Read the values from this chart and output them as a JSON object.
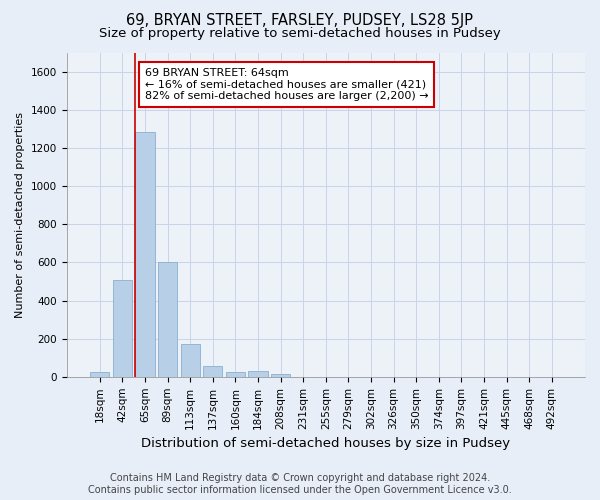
{
  "title": "69, BRYAN STREET, FARSLEY, PUDSEY, LS28 5JP",
  "subtitle": "Size of property relative to semi-detached houses in Pudsey",
  "xlabel": "Distribution of semi-detached houses by size in Pudsey",
  "ylabel": "Number of semi-detached properties",
  "footer_line1": "Contains HM Land Registry data © Crown copyright and database right 2024.",
  "footer_line2": "Contains public sector information licensed under the Open Government Licence v3.0.",
  "categories": [
    "18sqm",
    "42sqm",
    "65sqm",
    "89sqm",
    "113sqm",
    "137sqm",
    "160sqm",
    "184sqm",
    "208sqm",
    "231sqm",
    "255sqm",
    "279sqm",
    "302sqm",
    "326sqm",
    "350sqm",
    "374sqm",
    "397sqm",
    "421sqm",
    "445sqm",
    "468sqm",
    "492sqm"
  ],
  "values": [
    25,
    510,
    1285,
    600,
    170,
    58,
    25,
    30,
    15,
    0,
    0,
    0,
    0,
    0,
    0,
    0,
    0,
    0,
    0,
    0,
    0
  ],
  "bar_color": "#b8cfe8",
  "bar_edge_color": "#8ab0d0",
  "vline_x": 1.55,
  "vline_color": "#cc0000",
  "annotation_text": "69 BRYAN STREET: 64sqm\n← 16% of semi-detached houses are smaller (421)\n82% of semi-detached houses are larger (2,200) →",
  "ylim": [
    0,
    1700
  ],
  "yticks": [
    0,
    200,
    400,
    600,
    800,
    1000,
    1200,
    1400,
    1600
  ],
  "background_color": "#e8eef8",
  "plot_background": "#edf2f9",
  "grid_color": "#c8d4e8",
  "title_fontsize": 10.5,
  "subtitle_fontsize": 9.5,
  "xlabel_fontsize": 9.5,
  "ylabel_fontsize": 8,
  "tick_fontsize": 7.5,
  "annotation_fontsize": 8,
  "footer_fontsize": 7
}
